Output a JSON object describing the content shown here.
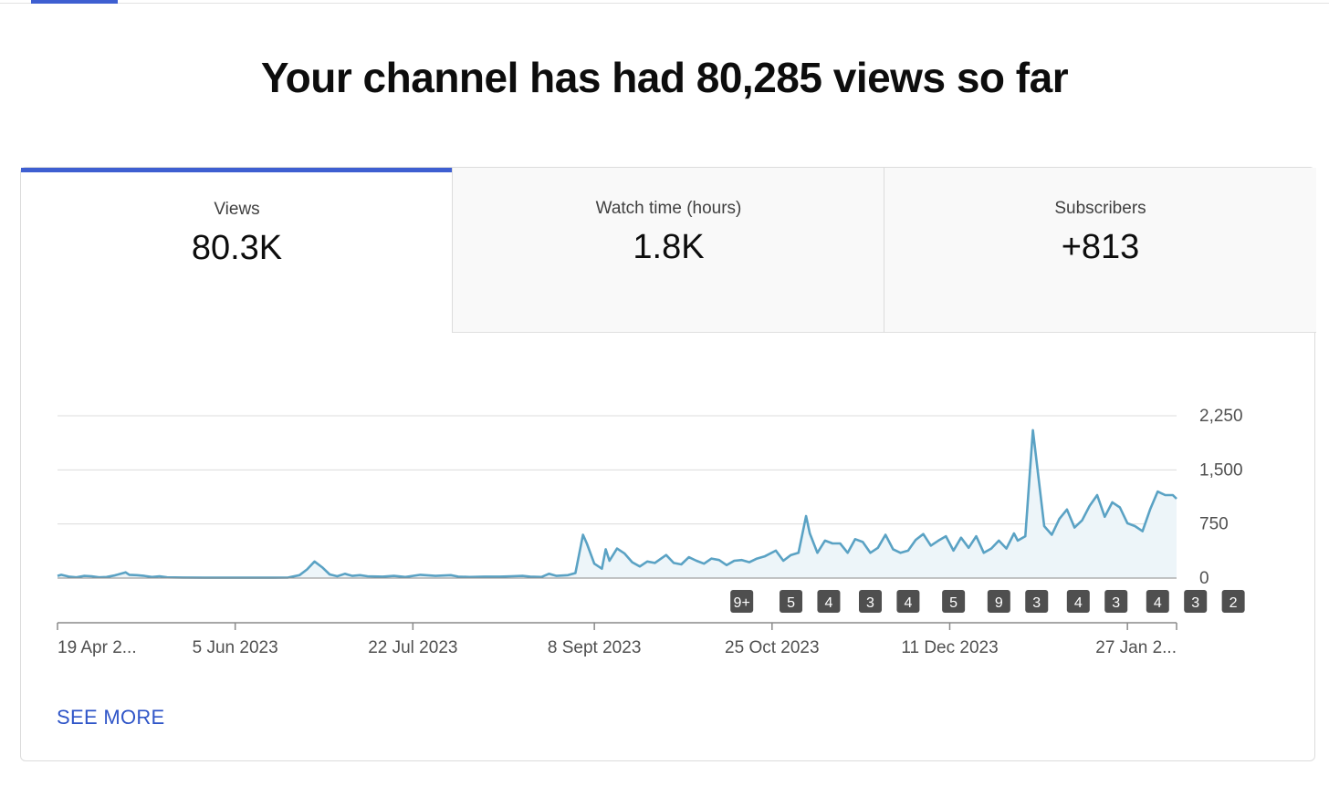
{
  "headline": "Your channel has had 80,285 views so far",
  "tabs": [
    {
      "label": "Views",
      "value": "80.3K",
      "active": true
    },
    {
      "label": "Watch time (hours)",
      "value": "1.8K",
      "active": false
    },
    {
      "label": "Subscribers",
      "value": "+813",
      "active": false
    }
  ],
  "see_more": "SEE MORE",
  "colors": {
    "accent": "#3e5fd1",
    "line": "#5aa2c4",
    "area": "#edf5f9",
    "badge": "#4f4f4f",
    "link": "#3056c8"
  },
  "chart_data": {
    "type": "area",
    "x_range": [
      "2023-04-19",
      "2024-02-09"
    ],
    "ylim": [
      0,
      2250
    ],
    "y_ticks": [
      0,
      750,
      1500,
      2250
    ],
    "y_tick_labels": [
      "0",
      "750",
      "1,500",
      "2,250"
    ],
    "x_tick_labels": [
      "19 Apr 2...",
      "5 Jun 2023",
      "22 Jul 2023",
      "8 Sept 2023",
      "25 Oct 2023",
      "11 Dec 2023",
      "27 Jan 2..."
    ],
    "x_tick_dates": [
      "2023-04-19",
      "2023-06-05",
      "2023-07-22",
      "2023-09-08",
      "2023-10-25",
      "2023-12-11",
      "2024-01-27"
    ],
    "grid": true,
    "series": [
      {
        "points": [
          [
            "2023-04-19",
            30
          ],
          [
            "2023-04-20",
            45
          ],
          [
            "2023-04-22",
            20
          ],
          [
            "2023-04-24",
            10
          ],
          [
            "2023-04-26",
            30
          ],
          [
            "2023-04-28",
            25
          ],
          [
            "2023-04-30",
            10
          ],
          [
            "2023-05-02",
            15
          ],
          [
            "2023-05-04",
            35
          ],
          [
            "2023-05-07",
            80
          ],
          [
            "2023-05-08",
            45
          ],
          [
            "2023-05-10",
            40
          ],
          [
            "2023-05-12",
            30
          ],
          [
            "2023-05-14",
            15
          ],
          [
            "2023-05-16",
            25
          ],
          [
            "2023-05-18",
            10
          ],
          [
            "2023-05-22",
            8
          ],
          [
            "2023-05-28",
            5
          ],
          [
            "2023-06-03",
            5
          ],
          [
            "2023-06-10",
            5
          ],
          [
            "2023-06-15",
            5
          ],
          [
            "2023-06-19",
            8
          ],
          [
            "2023-06-22",
            40
          ],
          [
            "2023-06-24",
            120
          ],
          [
            "2023-06-26",
            230
          ],
          [
            "2023-06-28",
            150
          ],
          [
            "2023-06-30",
            50
          ],
          [
            "2023-07-02",
            25
          ],
          [
            "2023-07-04",
            60
          ],
          [
            "2023-07-06",
            30
          ],
          [
            "2023-07-08",
            40
          ],
          [
            "2023-07-10",
            25
          ],
          [
            "2023-07-14",
            20
          ],
          [
            "2023-07-17",
            30
          ],
          [
            "2023-07-20",
            15
          ],
          [
            "2023-07-24",
            45
          ],
          [
            "2023-07-28",
            30
          ],
          [
            "2023-08-01",
            40
          ],
          [
            "2023-08-03",
            20
          ],
          [
            "2023-08-06",
            15
          ],
          [
            "2023-08-10",
            20
          ],
          [
            "2023-08-14",
            20
          ],
          [
            "2023-08-17",
            25
          ],
          [
            "2023-08-20",
            30
          ],
          [
            "2023-08-22",
            20
          ],
          [
            "2023-08-25",
            15
          ],
          [
            "2023-08-27",
            60
          ],
          [
            "2023-08-29",
            30
          ],
          [
            "2023-09-01",
            40
          ],
          [
            "2023-09-03",
            70
          ],
          [
            "2023-09-05",
            600
          ],
          [
            "2023-09-06",
            480
          ],
          [
            "2023-09-08",
            200
          ],
          [
            "2023-09-10",
            130
          ],
          [
            "2023-09-11",
            400
          ],
          [
            "2023-09-12",
            240
          ],
          [
            "2023-09-14",
            410
          ],
          [
            "2023-09-16",
            340
          ],
          [
            "2023-09-18",
            220
          ],
          [
            "2023-09-20",
            160
          ],
          [
            "2023-09-22",
            230
          ],
          [
            "2023-09-24",
            210
          ],
          [
            "2023-09-27",
            320
          ],
          [
            "2023-09-29",
            210
          ],
          [
            "2023-10-01",
            190
          ],
          [
            "2023-10-03",
            290
          ],
          [
            "2023-10-05",
            240
          ],
          [
            "2023-10-07",
            200
          ],
          [
            "2023-10-09",
            270
          ],
          [
            "2023-10-11",
            250
          ],
          [
            "2023-10-13",
            180
          ],
          [
            "2023-10-15",
            240
          ],
          [
            "2023-10-17",
            250
          ],
          [
            "2023-10-19",
            220
          ],
          [
            "2023-10-21",
            270
          ],
          [
            "2023-10-23",
            300
          ],
          [
            "2023-10-26",
            380
          ],
          [
            "2023-10-28",
            240
          ],
          [
            "2023-10-30",
            320
          ],
          [
            "2023-11-01",
            350
          ],
          [
            "2023-11-03",
            860
          ],
          [
            "2023-11-04",
            620
          ],
          [
            "2023-11-06",
            350
          ],
          [
            "2023-11-08",
            520
          ],
          [
            "2023-11-10",
            480
          ],
          [
            "2023-11-12",
            480
          ],
          [
            "2023-11-14",
            350
          ],
          [
            "2023-11-16",
            540
          ],
          [
            "2023-11-18",
            500
          ],
          [
            "2023-11-20",
            350
          ],
          [
            "2023-11-22",
            420
          ],
          [
            "2023-11-24",
            600
          ],
          [
            "2023-11-26",
            400
          ],
          [
            "2023-11-28",
            350
          ],
          [
            "2023-11-30",
            380
          ],
          [
            "2023-12-02",
            530
          ],
          [
            "2023-12-04",
            610
          ],
          [
            "2023-12-06",
            450
          ],
          [
            "2023-12-08",
            520
          ],
          [
            "2023-12-10",
            580
          ],
          [
            "2023-12-12",
            380
          ],
          [
            "2023-12-14",
            560
          ],
          [
            "2023-12-16",
            420
          ],
          [
            "2023-12-18",
            580
          ],
          [
            "2023-12-20",
            350
          ],
          [
            "2023-12-22",
            410
          ],
          [
            "2023-12-24",
            520
          ],
          [
            "2023-12-26",
            410
          ],
          [
            "2023-12-28",
            620
          ],
          [
            "2023-12-29",
            520
          ],
          [
            "2023-12-31",
            580
          ],
          [
            "2024-01-02",
            2050
          ],
          [
            "2024-01-03",
            1600
          ],
          [
            "2024-01-05",
            720
          ],
          [
            "2024-01-07",
            600
          ],
          [
            "2024-01-09",
            820
          ],
          [
            "2024-01-11",
            950
          ],
          [
            "2024-01-13",
            700
          ],
          [
            "2024-01-15",
            800
          ],
          [
            "2024-01-17",
            1000
          ],
          [
            "2024-01-19",
            1150
          ],
          [
            "2024-01-21",
            850
          ],
          [
            "2024-01-23",
            1050
          ],
          [
            "2024-01-25",
            980
          ],
          [
            "2024-01-27",
            760
          ],
          [
            "2024-01-29",
            720
          ],
          [
            "2024-01-31",
            650
          ],
          [
            "2024-02-02",
            950
          ],
          [
            "2024-02-04",
            1200
          ],
          [
            "2024-02-06",
            1150
          ],
          [
            "2024-02-08",
            1150
          ],
          [
            "2024-02-09",
            1100
          ]
        ]
      }
    ],
    "markers": [
      {
        "label": "9+",
        "date": "2023-10-17"
      },
      {
        "label": "5",
        "date": "2023-10-30"
      },
      {
        "label": "4",
        "date": "2023-11-09"
      },
      {
        "label": "3",
        "date": "2023-11-20"
      },
      {
        "label": "4",
        "date": "2023-11-30"
      },
      {
        "label": "5",
        "date": "2023-12-12"
      },
      {
        "label": "9",
        "date": "2023-12-24"
      },
      {
        "label": "3",
        "date": "2024-01-03"
      },
      {
        "label": "4",
        "date": "2024-01-14"
      },
      {
        "label": "3",
        "date": "2024-01-24"
      },
      {
        "label": "4",
        "date": "2024-02-04"
      },
      {
        "label": "3",
        "date": "2024-02-14"
      },
      {
        "label": "2",
        "date": "2024-02-24"
      }
    ]
  }
}
